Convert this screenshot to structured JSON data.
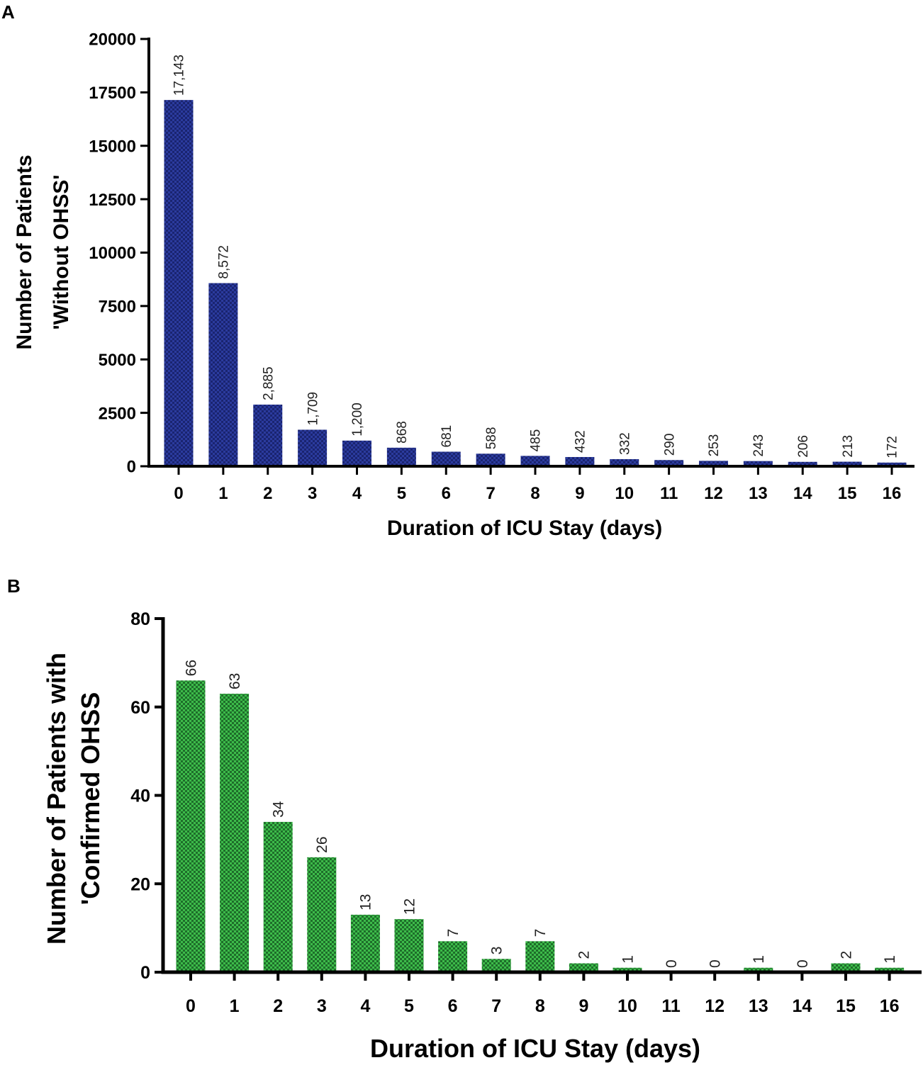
{
  "chart_data": [
    {
      "panel": "A",
      "type": "bar",
      "categories": [
        "0",
        "1",
        "2",
        "3",
        "4",
        "5",
        "6",
        "7",
        "8",
        "9",
        "10",
        "11",
        "12",
        "13",
        "14",
        "15",
        "16"
      ],
      "values": [
        17143,
        8572,
        2885,
        1709,
        1200,
        868,
        681,
        588,
        485,
        432,
        332,
        290,
        253,
        243,
        206,
        213,
        172
      ],
      "data_labels": [
        "17,143",
        "8,572",
        "2,885",
        "1,709",
        "1,200",
        "868",
        "681",
        "588",
        "485",
        "432",
        "332",
        "290",
        "253",
        "243",
        "206",
        "213",
        "172"
      ],
      "xlabel": "Duration of ICU Stay (days)",
      "ylabel_lines": [
        "Number of Patients",
        "'Without OHSS'"
      ],
      "ylim": [
        0,
        20000
      ],
      "yticks": [
        0,
        2500,
        5000,
        7500,
        10000,
        12500,
        15000,
        17500,
        20000
      ],
      "color": "#2b3b9e",
      "pattern_color": "#1a2470",
      "grid": false
    },
    {
      "panel": "B",
      "type": "bar",
      "categories": [
        "0",
        "1",
        "2",
        "3",
        "4",
        "5",
        "6",
        "7",
        "8",
        "9",
        "10",
        "11",
        "12",
        "13",
        "14",
        "15",
        "16"
      ],
      "values": [
        66,
        63,
        34,
        26,
        13,
        12,
        7,
        3,
        7,
        2,
        1,
        0,
        0,
        1,
        0,
        2,
        1
      ],
      "data_labels": [
        "66",
        "63",
        "34",
        "26",
        "13",
        "12",
        "7",
        "3",
        "7",
        "2",
        "1",
        "0",
        "0",
        "1",
        "0",
        "2",
        "1"
      ],
      "xlabel": "Duration of ICU Stay (days)",
      "ylabel_lines": [
        "Number of Patients with",
        "'Confirmed OHSS"
      ],
      "ylim": [
        0,
        80
      ],
      "yticks": [
        0,
        20,
        40,
        60,
        80
      ],
      "color": "#3dbb4a",
      "pattern_color": "#1e6e2a",
      "grid": false
    }
  ]
}
